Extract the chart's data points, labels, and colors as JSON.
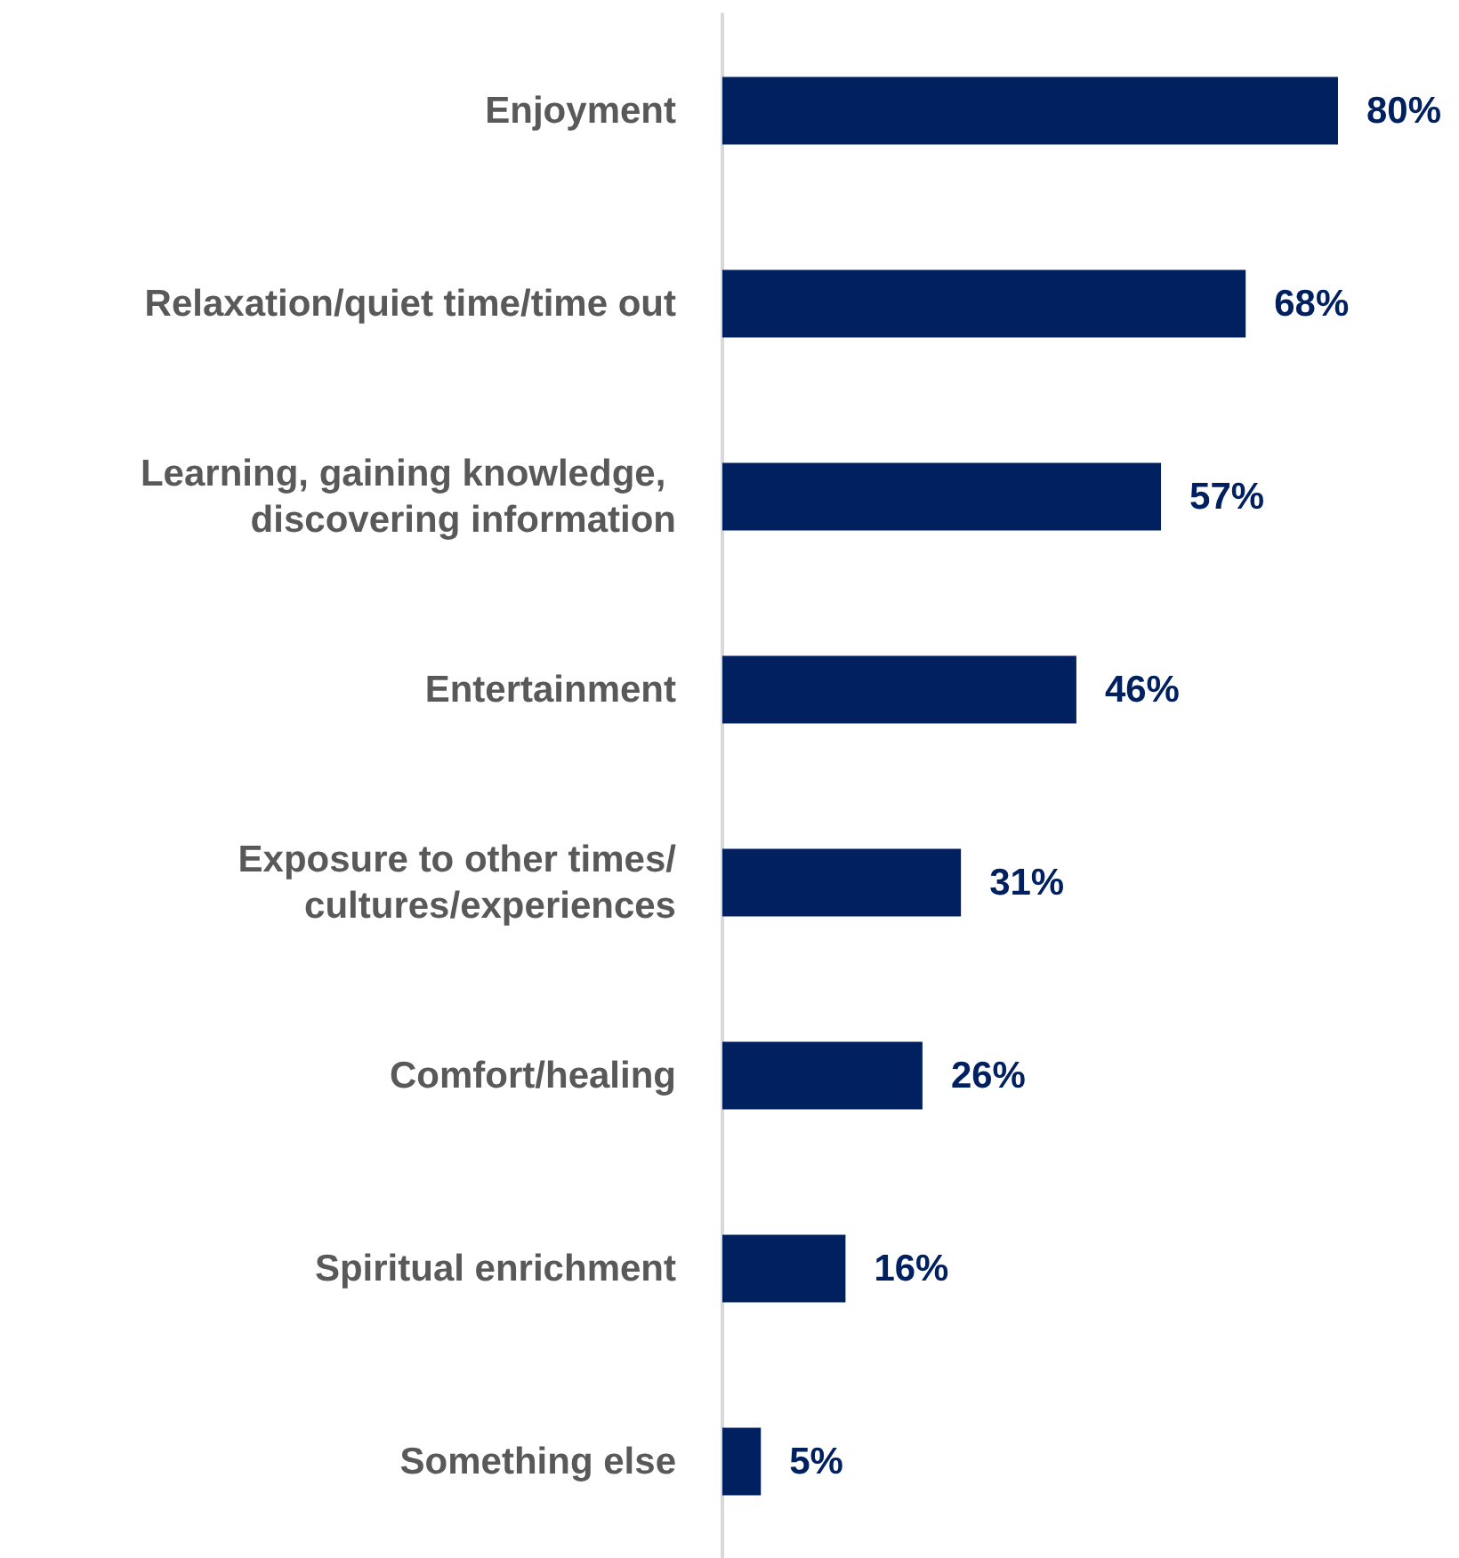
{
  "chart_data": {
    "type": "bar",
    "orientation": "horizontal",
    "categories": [
      "Enjoyment",
      "Relaxation/quiet time/time out",
      "Learning, gaining knowledge, discovering information",
      "Entertainment",
      "Exposure to other times/cultures/experiences",
      "Comfort/healing",
      "Spiritual enrichment",
      "Something else"
    ],
    "values": [
      80,
      68,
      57,
      46,
      31,
      26,
      16,
      5
    ],
    "value_labels": [
      "80%",
      "68%",
      "57%",
      "46%",
      "31%",
      "26%",
      "16%",
      "5%"
    ],
    "color": "#002060"
  }
}
